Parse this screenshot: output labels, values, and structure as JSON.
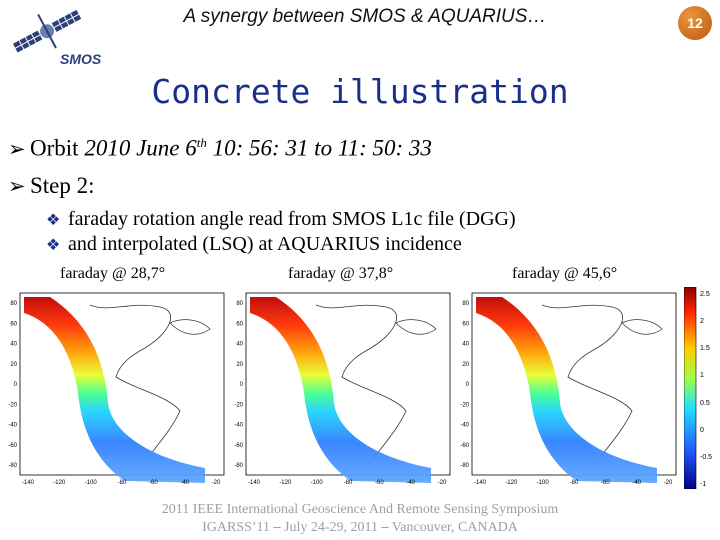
{
  "header": {
    "title": "A synergy between SMOS & AQUARIUS…",
    "slide_number": "12",
    "logo_text": "SMOS"
  },
  "main": {
    "title": "Concrete illustration",
    "bullets": [
      {
        "text_pre": "Orbit ",
        "text_italic": "2010 June 6",
        "sup": "th",
        "text_italic_post": " 10: 56: 31 to 11: 50: 33"
      },
      {
        "text": "Step 2:"
      }
    ],
    "sub_bullets": [
      "faraday rotation angle read from SMOS L1c file (DGG)",
      "and interpolated (LSQ) at AQUARIUS incidence"
    ],
    "plots": [
      {
        "label": "faraday @ 28,7°"
      },
      {
        "label": "faraday @ 37,8°"
      },
      {
        "label": "faraday @ 45,6°"
      }
    ],
    "map_y_ticks": [
      "80",
      "60",
      "40",
      "20",
      "0",
      "-20",
      "-40",
      "-60",
      "-80"
    ],
    "map_x_ticks": [
      "-140",
      "-120",
      "-100",
      "-80",
      "-60",
      "-40",
      "-20"
    ],
    "colorbar_ticks": [
      "2.5",
      "2",
      "1.5",
      "1",
      "0.5",
      "0",
      "-0.5",
      "-1"
    ]
  },
  "footer": {
    "line1": "2011 IEEE International Geoscience And Remote Sensing Symposium",
    "line2": "IGARSS’11 ⎯ July 24-29, 2011 ⎯ Vancouver, CANADA"
  }
}
